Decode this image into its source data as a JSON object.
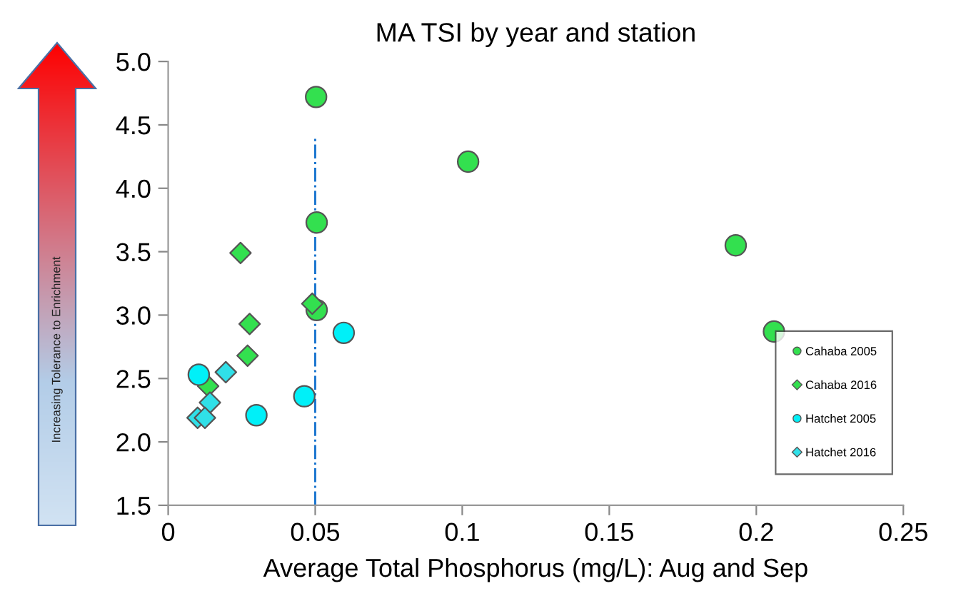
{
  "chart_data": {
    "type": "scatter",
    "title": "MA TSI by year and station",
    "xlabel": "Average Total Phosphorus (mg/L): Aug and Sep",
    "annotations": [
      "Increasing Tolerance to Enrichment"
    ],
    "series": [
      {
        "name": "Cahaba 2005",
        "color": "#33e04f",
        "marker": "circle",
        "x": [
          0.0503,
          0.102,
          0.0505,
          0.0505,
          0.193,
          0.206
        ],
        "values": [
          4.72,
          4.21,
          3.73,
          3.04,
          3.55,
          2.87
        ]
      },
      {
        "name": "Cahaba 2016",
        "color": "#33e04f",
        "marker": "diamond",
        "x": [
          0.0246,
          0.049,
          0.0277,
          0.027,
          0.0136
        ],
        "values": [
          3.49,
          3.09,
          2.93,
          2.68,
          2.44
        ]
      },
      {
        "name": "Hatchet 2005",
        "color": "#00f0f8",
        "marker": "circle",
        "x": [
          0.0104,
          0.0597,
          0.0463,
          0.03
        ],
        "values": [
          2.53,
          2.86,
          2.36,
          2.21
        ]
      },
      {
        "name": "Hatchet 2016",
        "color": "#30e0e8",
        "marker": "diamond",
        "x": [
          0.0196,
          0.0142,
          0.01,
          0.0125
        ],
        "values": [
          2.55,
          2.31,
          2.19,
          2.19
        ]
      }
    ],
    "ref_lines": [
      {
        "axis": "x",
        "value": 0.05,
        "color": "#1f78d0",
        "line_style": "dashdot"
      }
    ],
    "xlim": [
      0,
      0.25
    ],
    "xticks": [
      0,
      0.05,
      0.1,
      0.15,
      0.2,
      0.25
    ],
    "ylim": [
      1.5,
      5.0
    ],
    "yticks": [
      {
        "value": 1.5,
        "label": "1.5"
      },
      {
        "value": 2,
        "label": "2.0"
      },
      {
        "value": 2.5,
        "label": "2.5"
      },
      {
        "value": 3,
        "label": "3.0"
      },
      {
        "value": 3.5,
        "label": "3.5"
      },
      {
        "value": 4,
        "label": "4.0"
      },
      {
        "value": 4.5,
        "label": "4.5"
      },
      {
        "value": 5,
        "label": "5.0"
      }
    ],
    "grid": false,
    "legend": "bottom right"
  }
}
